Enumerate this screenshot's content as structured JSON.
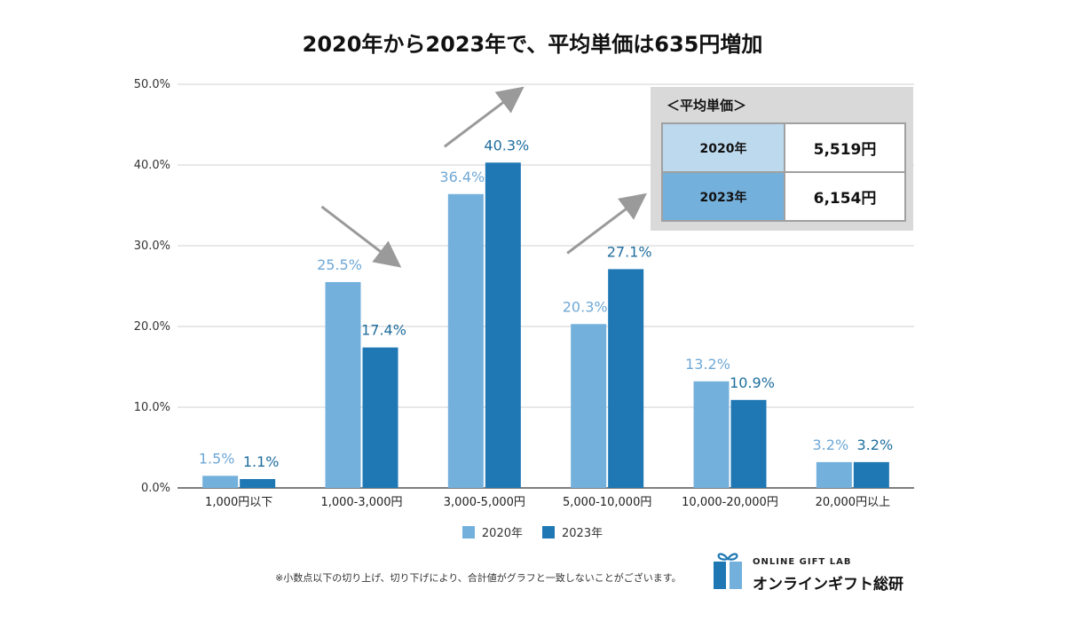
{
  "title": "2020年から2023年で、平均単価は635円増加",
  "chart_data": {
    "type": "bar",
    "categories": [
      "1,000円以下",
      "1,000-3,000円",
      "3,000-5,000円",
      "5,000-10,000円",
      "10,000-20,000円",
      "20,000円以上"
    ],
    "series": [
      {
        "name": "2020年",
        "values": [
          1.5,
          25.5,
          36.4,
          20.3,
          13.2,
          3.2
        ],
        "labels": [
          "1.5%",
          "25.5%",
          "36.4%",
          "20.3%",
          "13.2%",
          "3.2%"
        ]
      },
      {
        "name": "2023年",
        "values": [
          1.1,
          17.4,
          40.3,
          27.1,
          10.9,
          3.2
        ],
        "labels": [
          "1.1%",
          "17.4%",
          "40.3%",
          "27.1%",
          "10.9%",
          "3.2%"
        ]
      }
    ],
    "yticks": [
      "0.0%",
      "10.0%",
      "20.0%",
      "30.0%",
      "40.0%",
      "50.0%"
    ],
    "ylim": [
      0,
      50
    ],
    "grid": true,
    "legend_position": "bottom",
    "colors": {
      "s2020": "#74b0dc",
      "s2023": "#1f78b4",
      "label2020": "#6fa8d6",
      "label2023": "#1f6e9e",
      "arrow": "#9a9a9a"
    },
    "annotations": {
      "trend_arrows": [
        "up",
        "down",
        "up"
      ]
    }
  },
  "avg_box": {
    "title": "＜平均単価＞",
    "rows": [
      {
        "year": "2020年",
        "value": "5,519円",
        "color": "#bcd9ee"
      },
      {
        "year": "2023年",
        "value": "6,154円",
        "color": "#74b0dc"
      }
    ]
  },
  "legend": {
    "items": [
      {
        "label": "2020年",
        "color": "#74b0dc"
      },
      {
        "label": "2023年",
        "color": "#1f78b4"
      }
    ]
  },
  "footnote": "※小数点以下の切り上げ、切り下げにより、合計値がグラフと一致しないことがございます。",
  "logo": {
    "en": "ONLINE GIFT LAB",
    "jp": "オンラインギフト総研",
    "icon": "gift-box-icon"
  }
}
